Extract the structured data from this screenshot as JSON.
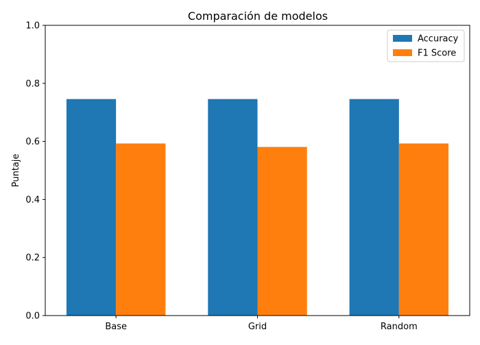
{
  "chart_data": {
    "type": "bar",
    "title": "Comparación de modelos",
    "xlabel": "",
    "ylabel": "Puntaje",
    "categories": [
      "Base",
      "Grid",
      "Random"
    ],
    "series": [
      {
        "name": "Accuracy",
        "color": "#1f77b4",
        "values": [
          0.746,
          0.746,
          0.746
        ]
      },
      {
        "name": "F1 Score",
        "color": "#ff7f0e",
        "values": [
          0.593,
          0.581,
          0.593
        ]
      }
    ],
    "ylim": [
      0,
      1.0
    ],
    "yticks": [
      "0.0",
      "0.2",
      "0.4",
      "0.6",
      "0.8",
      "1.0"
    ],
    "grid": false,
    "legend_position": "top-right"
  }
}
